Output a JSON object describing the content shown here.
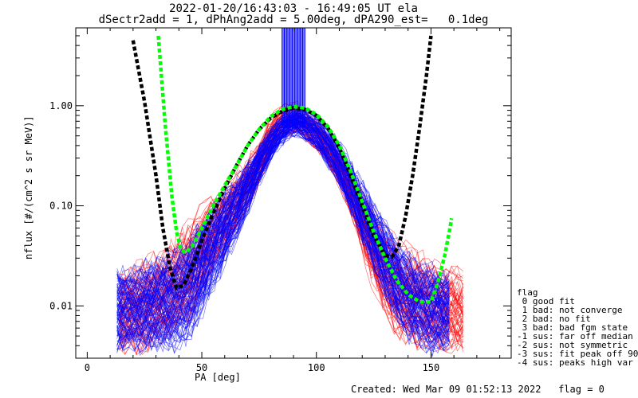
{
  "chart_data": {
    "type": "line",
    "title": "2022-01-20/16:43:03 - 16:49:05 UT ela",
    "subtitle": "dSectr2add = 1, dPhAng2add = 5.00deg, dPA290_est=   0.1deg",
    "xlabel": "PA [deg]",
    "ylabel": "nflux [#/(cm^2 s sr MeV)]",
    "xlim": [
      -5,
      185
    ],
    "ylim": [
      0.003,
      6.0
    ],
    "yscale": "log",
    "x_ticks": [
      0,
      50,
      100,
      150
    ],
    "y_ticks": [
      0.01,
      0.1,
      1.0
    ],
    "y_tick_labels": [
      "0.01",
      "0.10",
      "1.00"
    ],
    "grid": false,
    "colors": {
      "red": "#ff0000",
      "blue": "#0000ff",
      "black": "#000000",
      "green": "#00ff00"
    },
    "series": [
      {
        "color": "black",
        "style": "dashed",
        "x": [
          20,
          25,
          30,
          33,
          36,
          39,
          42,
          46,
          50,
          55,
          60,
          65,
          70,
          75,
          80,
          85,
          90,
          95,
          100,
          105,
          110,
          115,
          120,
          125,
          130,
          133,
          136,
          139,
          142,
          145,
          148,
          150
        ],
        "y": [
          4.5,
          1.1,
          0.2,
          0.06,
          0.025,
          0.015,
          0.016,
          0.025,
          0.045,
          0.085,
          0.15,
          0.25,
          0.4,
          0.58,
          0.75,
          0.88,
          0.95,
          0.92,
          0.8,
          0.6,
          0.38,
          0.2,
          0.1,
          0.05,
          0.032,
          0.031,
          0.04,
          0.08,
          0.2,
          0.6,
          2.0,
          5.0
        ]
      },
      {
        "color": "green",
        "style": "dashed",
        "x": [
          31,
          34,
          37,
          39,
          41,
          43,
          46,
          50,
          55,
          60,
          65,
          70,
          75,
          80,
          85,
          90,
          95,
          100,
          105,
          110,
          115,
          120,
          125,
          130,
          135,
          140,
          145,
          150,
          153,
          156,
          158,
          159
        ],
        "y": [
          5.0,
          0.65,
          0.12,
          0.055,
          0.036,
          0.034,
          0.04,
          0.06,
          0.1,
          0.16,
          0.25,
          0.4,
          0.58,
          0.78,
          0.92,
          0.98,
          0.95,
          0.82,
          0.62,
          0.4,
          0.22,
          0.11,
          0.055,
          0.03,
          0.018,
          0.013,
          0.011,
          0.011,
          0.017,
          0.032,
          0.055,
          0.075
        ]
      }
    ],
    "measurement_spread": {
      "red": {
        "upper": [
          [
            14,
            0.025
          ],
          [
            25,
            0.035
          ],
          [
            35,
            0.045
          ],
          [
            45,
            0.09
          ],
          [
            55,
            0.15
          ],
          [
            65,
            0.25
          ],
          [
            75,
            0.45
          ],
          [
            80,
            0.85
          ],
          [
            85,
            1.1
          ],
          [
            90,
            1.2
          ],
          [
            95,
            1.0
          ],
          [
            105,
            0.6
          ],
          [
            115,
            0.25
          ],
          [
            125,
            0.1
          ],
          [
            135,
            0.055
          ],
          [
            145,
            0.04
          ],
          [
            155,
            0.03
          ],
          [
            166,
            0.025
          ]
        ],
        "lower": [
          [
            14,
            0.003
          ],
          [
            25,
            0.003
          ],
          [
            35,
            0.004
          ],
          [
            45,
            0.006
          ],
          [
            55,
            0.02
          ],
          [
            65,
            0.05
          ],
          [
            75,
            0.15
          ],
          [
            80,
            0.3
          ],
          [
            85,
            0.45
          ],
          [
            90,
            0.5
          ],
          [
            95,
            0.45
          ],
          [
            105,
            0.25
          ],
          [
            115,
            0.08
          ],
          [
            125,
            0.012
          ],
          [
            135,
            0.004
          ],
          [
            145,
            0.003
          ],
          [
            155,
            0.003
          ],
          [
            166,
            0.003
          ]
        ]
      },
      "blue": {
        "upper": [
          [
            13,
            0.028
          ],
          [
            25,
            0.032
          ],
          [
            35,
            0.04
          ],
          [
            45,
            0.06
          ],
          [
            55,
            0.13
          ],
          [
            65,
            0.22
          ],
          [
            75,
            0.45
          ],
          [
            82,
            0.75
          ],
          [
            88,
            0.95
          ],
          [
            92,
            1.0
          ],
          [
            100,
            0.85
          ],
          [
            110,
            0.5
          ],
          [
            120,
            0.2
          ],
          [
            130,
            0.08
          ],
          [
            140,
            0.04
          ],
          [
            150,
            0.03
          ],
          [
            160,
            0.025
          ]
        ],
        "lower": [
          [
            13,
            0.003
          ],
          [
            25,
            0.003
          ],
          [
            35,
            0.003
          ],
          [
            45,
            0.004
          ],
          [
            55,
            0.012
          ],
          [
            65,
            0.04
          ],
          [
            75,
            0.15
          ],
          [
            82,
            0.32
          ],
          [
            88,
            0.45
          ],
          [
            92,
            0.48
          ],
          [
            100,
            0.35
          ],
          [
            110,
            0.15
          ],
          [
            120,
            0.04
          ],
          [
            130,
            0.01
          ],
          [
            140,
            0.004
          ],
          [
            150,
            0.003
          ],
          [
            160,
            0.003
          ]
        ]
      },
      "blue_spike": {
        "x": [
          85,
          95
        ],
        "y": [
          0.6,
          6.0
        ]
      }
    }
  },
  "legend": {
    "title": "flag",
    "items": [
      " 0 good fit",
      " 1 bad: not converge",
      " 2 bad: no fit",
      " 3 bad: bad fgm state",
      "-1 sus: far off median",
      "-2 sus: not symmetric",
      "-3 sus: fit peak off 90",
      "-4 sus: peaks high var"
    ]
  },
  "footer": "Created: Wed Mar 09 01:52:13 2022   flag = 0"
}
